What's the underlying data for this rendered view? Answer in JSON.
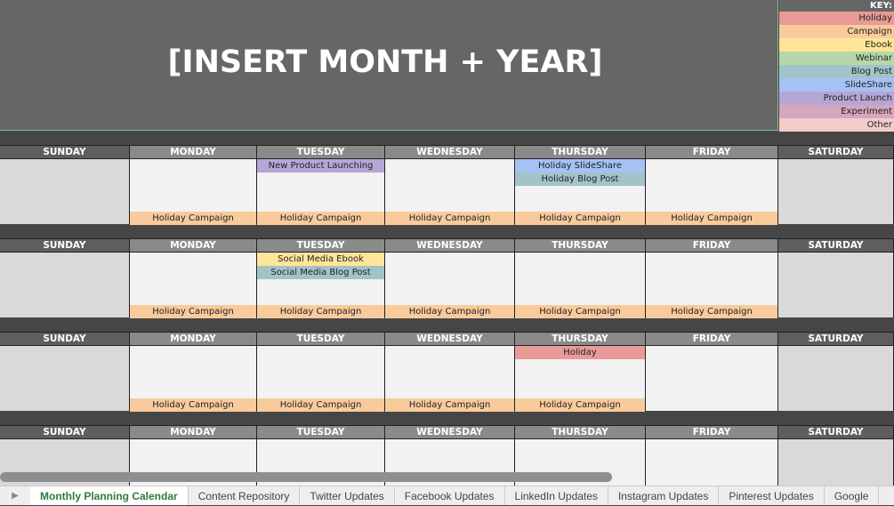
{
  "title": "[INSERT MONTH + YEAR]",
  "key": {
    "label": "KEY:",
    "items": [
      {
        "label": "Holiday",
        "color": "#ea9999"
      },
      {
        "label": "Campaign",
        "color": "#f9cb9c"
      },
      {
        "label": "Ebook",
        "color": "#ffe599"
      },
      {
        "label": "Webinar",
        "color": "#b6d7a8"
      },
      {
        "label": "Blog Post",
        "color": "#a2c4c9"
      },
      {
        "label": "SlideShare",
        "color": "#a4c2f4"
      },
      {
        "label": "Product Launch",
        "color": "#b4a7d6"
      },
      {
        "label": "Experiment",
        "color": "#d5a6bd"
      },
      {
        "label": "Other",
        "color": "#f4cccc"
      }
    ]
  },
  "days": [
    "SUNDAY",
    "MONDAY",
    "TUESDAY",
    "WEDNESDAY",
    "THURSDAY",
    "FRIDAY",
    "SATURDAY"
  ],
  "weeks": [
    {
      "events": [
        [],
        [],
        [
          {
            "text": "New Product Launching",
            "type": "Product Launch"
          }
        ],
        [],
        [
          {
            "text": "Holiday SlideShare",
            "type": "SlideShare"
          },
          {
            "text": "Holiday Blog Post",
            "type": "Blog Post"
          }
        ],
        [],
        []
      ],
      "bottom": [
        null,
        "Holiday Campaign",
        "Holiday Campaign",
        "Holiday Campaign",
        "Holiday Campaign",
        "Holiday Campaign",
        null
      ]
    },
    {
      "events": [
        [],
        [],
        [
          {
            "text": "Social Media Ebook",
            "type": "Ebook"
          },
          {
            "text": "Social Media Blog Post",
            "type": "Blog Post"
          }
        ],
        [],
        [],
        [],
        []
      ],
      "bottom": [
        null,
        "Holiday Campaign",
        "Holiday Campaign",
        "Holiday Campaign",
        "Holiday Campaign",
        "Holiday Campaign",
        null
      ]
    },
    {
      "events": [
        [],
        [],
        [],
        [],
        [
          {
            "text": "Holiday",
            "type": "Holiday"
          }
        ],
        [],
        []
      ],
      "bottom": [
        null,
        "Holiday Campaign",
        "Holiday Campaign",
        "Holiday Campaign",
        "Holiday Campaign",
        null,
        null
      ]
    },
    {
      "events": [
        [],
        [],
        [],
        [],
        [],
        [],
        []
      ],
      "bottom": [
        null,
        null,
        null,
        null,
        null,
        null,
        null
      ]
    }
  ],
  "tabs": [
    "Monthly Planning Calendar",
    "Content Repository",
    "Twitter Updates",
    "Facebook Updates",
    "LinkedIn Updates",
    "Instagram Updates",
    "Pinterest Updates",
    "Google"
  ],
  "active_tab": "Monthly Planning Calendar"
}
